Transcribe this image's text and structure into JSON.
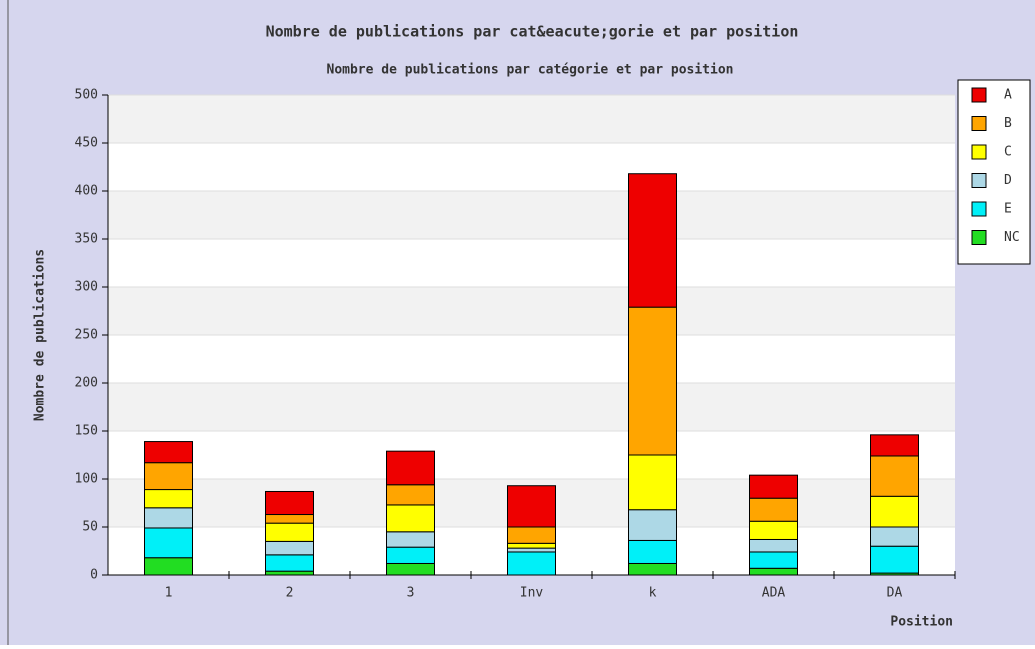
{
  "chart_data": {
    "type": "stacked_bar",
    "title": "Nombre de publications par cat&eacute;gorie et par position",
    "subtitle": "Nombre de publications par catégorie et par position",
    "x_label": "Position",
    "y_label": "Nombre de publications",
    "categories": [
      "1",
      "2",
      "3",
      "Inv",
      "k",
      "ADA",
      "DA"
    ],
    "series": [
      {
        "name": "NC",
        "color": "#22dd22",
        "values": [
          18,
          4,
          12,
          0,
          12,
          7,
          2
        ]
      },
      {
        "name": "E",
        "color": "#00f0f8",
        "values": [
          31,
          17,
          17,
          24,
          24,
          17,
          28
        ]
      },
      {
        "name": "D",
        "color": "#add8e6",
        "values": [
          21,
          14,
          16,
          4,
          32,
          13,
          20
        ]
      },
      {
        "name": "C",
        "color": "#ffff00",
        "values": [
          19,
          19,
          28,
          5,
          57,
          19,
          32
        ]
      },
      {
        "name": "B",
        "color": "#ffa500",
        "values": [
          28,
          9,
          21,
          17,
          154,
          24,
          42
        ]
      },
      {
        "name": "A",
        "color": "#ee0000",
        "values": [
          22,
          24,
          35,
          43,
          139,
          24,
          22
        ]
      }
    ],
    "ylim": [
      0,
      500
    ],
    "yticks": [
      0,
      50,
      100,
      150,
      200,
      250,
      300,
      350,
      400,
      450,
      500
    ],
    "grid": true,
    "legend": "right"
  }
}
